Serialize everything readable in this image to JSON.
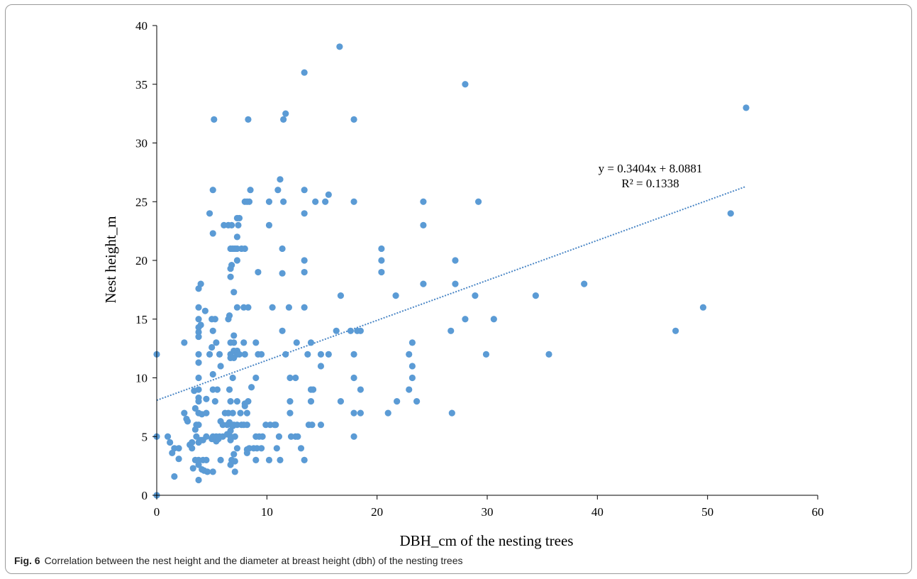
{
  "figure": {
    "label": "Fig. 6",
    "caption": "Correlation between the nest height and the diameter at breast height (dbh) of the nesting trees"
  },
  "chart_data": {
    "type": "scatter",
    "title": "",
    "xlabel": "DBH_cm of  the nesting trees",
    "ylabel": "Nest height_m",
    "xlim": [
      0,
      60
    ],
    "ylim": [
      0,
      40
    ],
    "xticks": [
      "0",
      "10",
      "20",
      "30",
      "40",
      "50",
      "60"
    ],
    "yticks": [
      "0",
      "5",
      "10",
      "15",
      "20",
      "25",
      "30",
      "35",
      "40"
    ],
    "grid": false,
    "legend": "none",
    "marker_color": "#5b9bd5",
    "trendline": {
      "type": "linear",
      "slope": 0.3404,
      "intercept": 8.0881,
      "x_range": [
        0,
        53.5
      ],
      "equation": "y = 0.3404x + 8.0881",
      "r_squared": "R² = 0.1338",
      "color": "#4a86c5",
      "style": "dotted"
    },
    "series": [
      {
        "points": [
          [
            0,
            0
          ],
          [
            0,
            5
          ],
          [
            0,
            12
          ],
          [
            1,
            5
          ],
          [
            1.2,
            4.5
          ],
          [
            1.4,
            3.6
          ],
          [
            1.6,
            4
          ],
          [
            1.6,
            1.6
          ],
          [
            2,
            4
          ],
          [
            2,
            3.1
          ],
          [
            2.5,
            13
          ],
          [
            2.5,
            7
          ],
          [
            2.7,
            6.5
          ],
          [
            2.8,
            6.3
          ],
          [
            3,
            4.3
          ],
          [
            3.2,
            4.5
          ],
          [
            3.2,
            4
          ],
          [
            3.3,
            2.3
          ],
          [
            3.4,
            8.9
          ],
          [
            3.5,
            7.4
          ],
          [
            3.5,
            5.6
          ],
          [
            3.5,
            3
          ],
          [
            3.6,
            6
          ],
          [
            3.6,
            5
          ],
          [
            3.8,
            17.6
          ],
          [
            3.8,
            16
          ],
          [
            3.8,
            15
          ],
          [
            3.8,
            14.3
          ],
          [
            3.8,
            13.9
          ],
          [
            3.8,
            13.5
          ],
          [
            3.8,
            12
          ],
          [
            3.8,
            11.3
          ],
          [
            3.8,
            10
          ],
          [
            3.8,
            9
          ],
          [
            3.8,
            8.3
          ],
          [
            3.8,
            8
          ],
          [
            3.8,
            7
          ],
          [
            3.8,
            6
          ],
          [
            3.8,
            4.5
          ],
          [
            3.8,
            3
          ],
          [
            3.8,
            2.6
          ],
          [
            3.8,
            1.3
          ],
          [
            4,
            18
          ],
          [
            4,
            14.5
          ],
          [
            4,
            4.7
          ],
          [
            4.1,
            2.2
          ],
          [
            4.1,
            6.9
          ],
          [
            4.2,
            3
          ],
          [
            4.2,
            4.7
          ],
          [
            4.3,
            2.1
          ],
          [
            4.4,
            15.7
          ],
          [
            4.5,
            8.2
          ],
          [
            4.5,
            7
          ],
          [
            4.5,
            5
          ],
          [
            4.5,
            3
          ],
          [
            4.6,
            2
          ],
          [
            4.8,
            24
          ],
          [
            4.8,
            12
          ],
          [
            5,
            15
          ],
          [
            5,
            12.6
          ],
          [
            5,
            4.8
          ],
          [
            5.1,
            26
          ],
          [
            5.1,
            22.3
          ],
          [
            5.1,
            14
          ],
          [
            5.1,
            10.3
          ],
          [
            5.1,
            9
          ],
          [
            5.1,
            5
          ],
          [
            5.1,
            2
          ],
          [
            5.2,
            32
          ],
          [
            5.3,
            15
          ],
          [
            5.3,
            8
          ],
          [
            5.4,
            13
          ],
          [
            5.4,
            5
          ],
          [
            5.4,
            4.6
          ],
          [
            5.5,
            9
          ],
          [
            5.6,
            4.8
          ],
          [
            5.7,
            12
          ],
          [
            5.7,
            5
          ],
          [
            5.8,
            11
          ],
          [
            5.8,
            6.3
          ],
          [
            5.8,
            3
          ],
          [
            6,
            5
          ],
          [
            6,
            6
          ],
          [
            6.1,
            23
          ],
          [
            6.2,
            7
          ],
          [
            6.4,
            6
          ],
          [
            6.4,
            5.2
          ],
          [
            6.5,
            7
          ],
          [
            6.5,
            23
          ],
          [
            6.5,
            15
          ],
          [
            6.6,
            15.3
          ],
          [
            6.6,
            9
          ],
          [
            6.6,
            6.2
          ],
          [
            6.7,
            21
          ],
          [
            6.7,
            19.3
          ],
          [
            6.7,
            18.6
          ],
          [
            6.7,
            13
          ],
          [
            6.7,
            12
          ],
          [
            6.7,
            11.7
          ],
          [
            6.7,
            8
          ],
          [
            6.7,
            5.5
          ],
          [
            6.7,
            5
          ],
          [
            6.7,
            4.7
          ],
          [
            6.7,
            2.6
          ],
          [
            6.8,
            23
          ],
          [
            6.8,
            19.6
          ],
          [
            6.8,
            6
          ],
          [
            6.8,
            3
          ],
          [
            6.9,
            21
          ],
          [
            6.9,
            10
          ],
          [
            6.9,
            7
          ],
          [
            6.9,
            5.9
          ],
          [
            7,
            17.3
          ],
          [
            7,
            13.6
          ],
          [
            7,
            13
          ],
          [
            7,
            12.3
          ],
          [
            7,
            11.7
          ],
          [
            7,
            6
          ],
          [
            7,
            3.5
          ],
          [
            7.1,
            21
          ],
          [
            7.1,
            5
          ],
          [
            7.1,
            2.9
          ],
          [
            7.1,
            2
          ],
          [
            7.3,
            23.6
          ],
          [
            7.3,
            22
          ],
          [
            7.3,
            21
          ],
          [
            7.3,
            20
          ],
          [
            7.3,
            16
          ],
          [
            7.3,
            12.3
          ],
          [
            7.3,
            12
          ],
          [
            7.3,
            8
          ],
          [
            7.3,
            6
          ],
          [
            7.3,
            4
          ],
          [
            7.4,
            23
          ],
          [
            7.5,
            23.6
          ],
          [
            7.5,
            12
          ],
          [
            7.6,
            7
          ],
          [
            7.7,
            21
          ],
          [
            7.7,
            6
          ],
          [
            7.9,
            16
          ],
          [
            7.9,
            13
          ],
          [
            7.9,
            6
          ],
          [
            8,
            25
          ],
          [
            8,
            21
          ],
          [
            8,
            12
          ],
          [
            8,
            7.8
          ],
          [
            8,
            7.6
          ],
          [
            8.2,
            25
          ],
          [
            8.2,
            7
          ],
          [
            8.2,
            6
          ],
          [
            8.2,
            3.9
          ],
          [
            8.2,
            3.6
          ],
          [
            8.3,
            32
          ],
          [
            8.3,
            16
          ],
          [
            8.3,
            8
          ],
          [
            8.4,
            25
          ],
          [
            8.4,
            4
          ],
          [
            8.5,
            26
          ],
          [
            8.6,
            9.2
          ],
          [
            8.8,
            4
          ],
          [
            9,
            13
          ],
          [
            9,
            10
          ],
          [
            9,
            5
          ],
          [
            9,
            3
          ],
          [
            9.1,
            4
          ],
          [
            9.2,
            19
          ],
          [
            9.2,
            12
          ],
          [
            9.3,
            5
          ],
          [
            9.5,
            12
          ],
          [
            9.5,
            4
          ],
          [
            9.6,
            5
          ],
          [
            9.9,
            6
          ],
          [
            10.2,
            23
          ],
          [
            10.2,
            25
          ],
          [
            10.2,
            3
          ],
          [
            10.3,
            6
          ],
          [
            10.5,
            16
          ],
          [
            10.7,
            6
          ],
          [
            10.8,
            6
          ],
          [
            10.9,
            4
          ],
          [
            11,
            26
          ],
          [
            11.1,
            5
          ],
          [
            11.2,
            3
          ],
          [
            11.2,
            26.9
          ],
          [
            11.4,
            21
          ],
          [
            11.4,
            14
          ],
          [
            11.4,
            18.9
          ],
          [
            11.5,
            25
          ],
          [
            11.5,
            32
          ],
          [
            11.7,
            32.5
          ],
          [
            11.7,
            12
          ],
          [
            12,
            16
          ],
          [
            12.1,
            10
          ],
          [
            12.1,
            8
          ],
          [
            12.1,
            7
          ],
          [
            12.2,
            5
          ],
          [
            12.6,
            10
          ],
          [
            12.6,
            5
          ],
          [
            12.7,
            13
          ],
          [
            12.8,
            5
          ],
          [
            13.1,
            4
          ],
          [
            13.4,
            36
          ],
          [
            13.4,
            26
          ],
          [
            13.4,
            24
          ],
          [
            13.4,
            20
          ],
          [
            13.4,
            19
          ],
          [
            13.4,
            16
          ],
          [
            13.4,
            3
          ],
          [
            13.7,
            12
          ],
          [
            13.8,
            6
          ],
          [
            14,
            9
          ],
          [
            14,
            8
          ],
          [
            14,
            13
          ],
          [
            14.1,
            6
          ],
          [
            14.2,
            9
          ],
          [
            14.4,
            25
          ],
          [
            14.9,
            12
          ],
          [
            14.9,
            11
          ],
          [
            14.9,
            6
          ],
          [
            15.3,
            25
          ],
          [
            15.6,
            12
          ],
          [
            15.6,
            25.6
          ],
          [
            16.3,
            14
          ],
          [
            16.6,
            38.2
          ],
          [
            16.7,
            17
          ],
          [
            16.7,
            8
          ],
          [
            17.6,
            14
          ],
          [
            17.9,
            32
          ],
          [
            17.9,
            25
          ],
          [
            17.9,
            12
          ],
          [
            17.9,
            10
          ],
          [
            17.9,
            7
          ],
          [
            17.9,
            5
          ],
          [
            18.2,
            14
          ],
          [
            18.5,
            14
          ],
          [
            18.5,
            9
          ],
          [
            18.5,
            7
          ],
          [
            20.4,
            21
          ],
          [
            20.4,
            20
          ],
          [
            20.4,
            19
          ],
          [
            21,
            7
          ],
          [
            21.7,
            17
          ],
          [
            21.8,
            8
          ],
          [
            22.9,
            12
          ],
          [
            22.9,
            9
          ],
          [
            23.2,
            13
          ],
          [
            23.2,
            11
          ],
          [
            23.2,
            10
          ],
          [
            23.6,
            8
          ],
          [
            24.2,
            25
          ],
          [
            24.2,
            23
          ],
          [
            24.2,
            18
          ],
          [
            26.7,
            14
          ],
          [
            26.8,
            7
          ],
          [
            27.1,
            20
          ],
          [
            27.1,
            18
          ],
          [
            28,
            35
          ],
          [
            28,
            15
          ],
          [
            28.9,
            17
          ],
          [
            29.2,
            25
          ],
          [
            29.9,
            12
          ],
          [
            30.6,
            15
          ],
          [
            34.4,
            17
          ],
          [
            35.6,
            12
          ],
          [
            38.8,
            18
          ],
          [
            47.1,
            14
          ],
          [
            49.6,
            16
          ],
          [
            52.1,
            24
          ],
          [
            53.5,
            33
          ]
        ]
      }
    ]
  }
}
